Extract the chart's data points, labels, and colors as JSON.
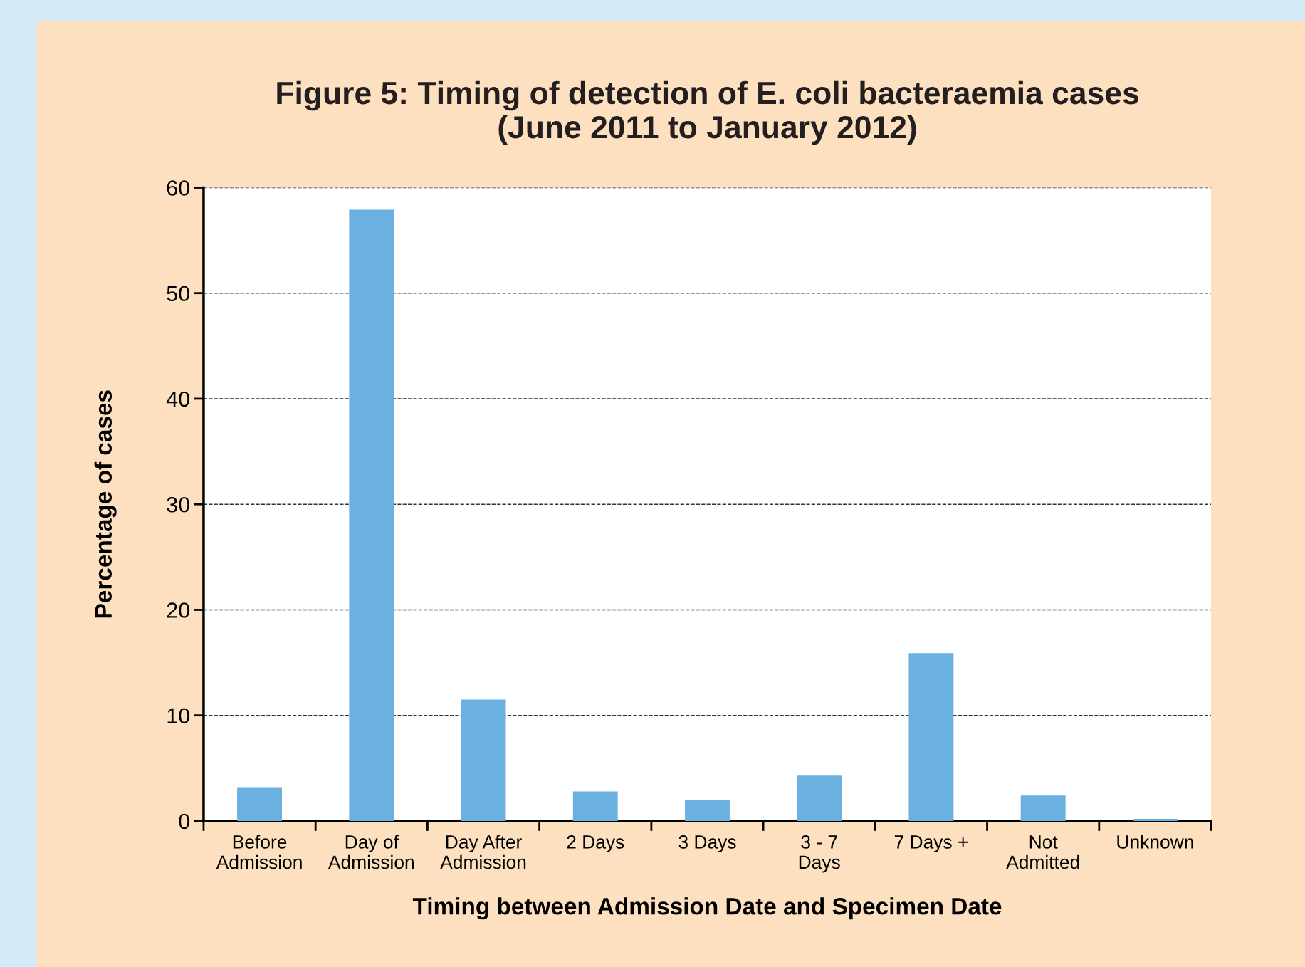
{
  "chart_data": {
    "type": "bar",
    "title": "Figure 5: Timing of detection of E. coli bacteraemia cases\n(June 2011 to January 2012)",
    "xlabel": "Timing between Admission Date and Specimen Date",
    "ylabel": "Percentage of cases",
    "categories": [
      "Before\nAdmission",
      "Day of\nAdmission",
      "Day After\nAdmission",
      "2 Days",
      "3 Days",
      "3 - 7\nDays",
      "7 Days +",
      "Not\nAdmitted",
      "Unknown"
    ],
    "values": [
      3.2,
      57.9,
      11.5,
      2.8,
      2.0,
      4.3,
      15.9,
      2.4,
      0.2
    ],
    "color": "#6ab0e0",
    "ylim": [
      0,
      60
    ],
    "yticks": [
      0,
      10,
      20,
      30,
      40,
      50,
      60
    ],
    "grid": "y"
  }
}
